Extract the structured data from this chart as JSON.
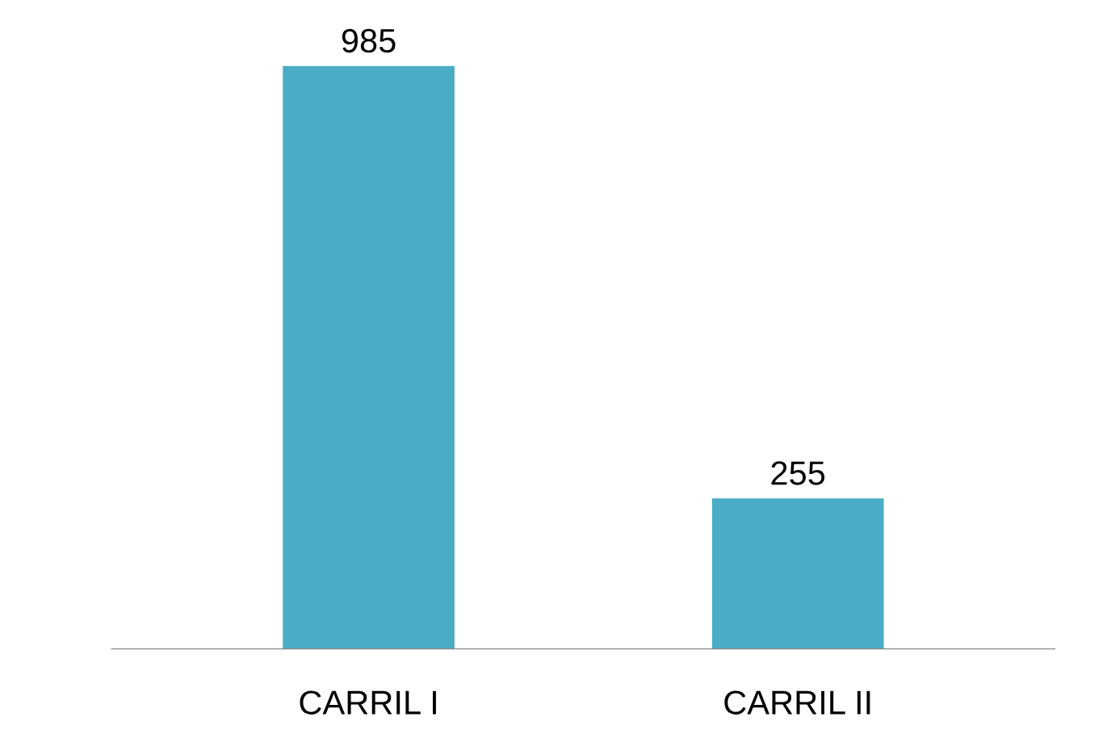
{
  "chart_data": {
    "type": "bar",
    "categories": [
      "CARRIL I",
      "CARRIL II"
    ],
    "values": [
      985,
      255
    ],
    "color": "#4bacc6",
    "data_labels": true
  }
}
